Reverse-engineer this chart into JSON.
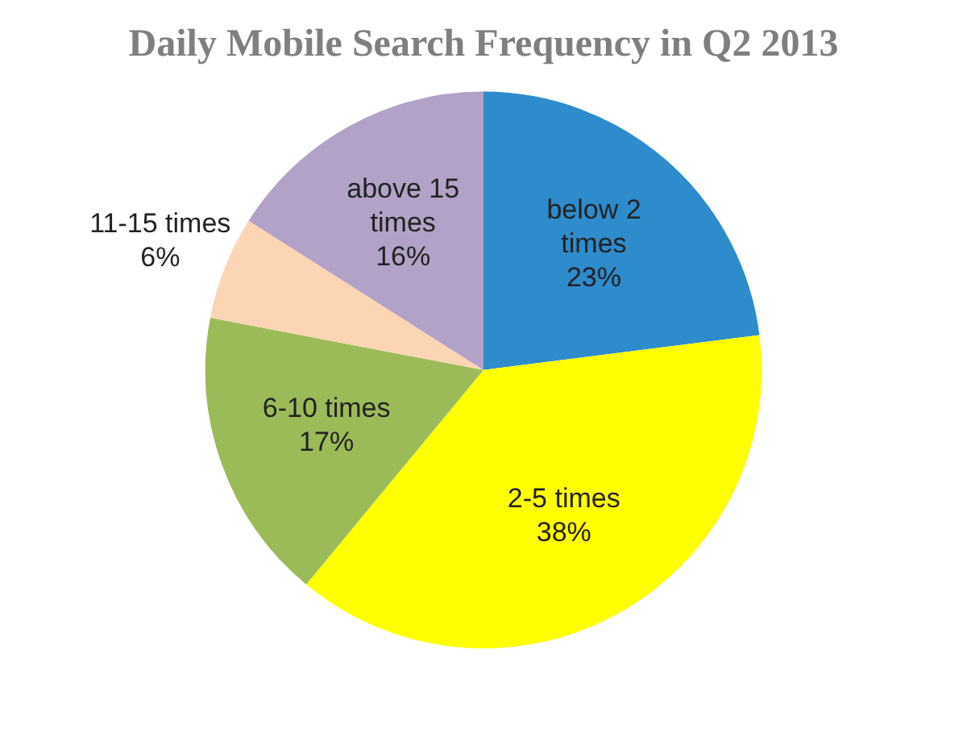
{
  "chart_data": {
    "type": "pie",
    "title": "Daily Mobile Search Frequency in Q2 2013",
    "categories": [
      "below 2 times",
      "2-5 times",
      "6-10 times",
      "11-15 times",
      "above 15 times"
    ],
    "values": [
      23,
      38,
      17,
      6,
      16
    ],
    "colors": [
      "#2e8bcc",
      "#ffff00",
      "#9bbb59",
      "#fcd5b5",
      "#b3a2c7"
    ],
    "value_labels": [
      "23%",
      "38%",
      "17%",
      "6%",
      "16%"
    ],
    "legend": false
  }
}
